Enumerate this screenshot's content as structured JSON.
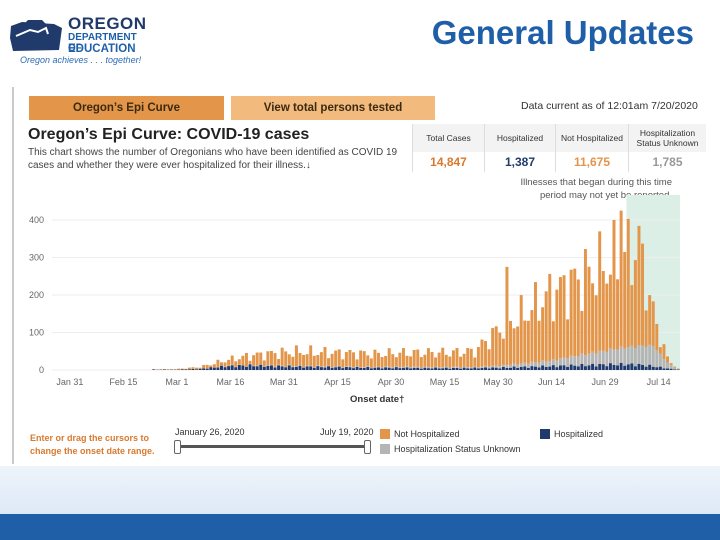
{
  "slide": {
    "title": "General Updates",
    "logo": {
      "line1": "OREGON",
      "line2": "DEPARTMENT OF",
      "line3": "EDUCATION",
      "tagline": "Oregon achieves . . . together!"
    }
  },
  "dashboard": {
    "tabs": [
      {
        "label": "Oregon’s Epi Curve",
        "active": true
      },
      {
        "label": "View total persons tested",
        "active": false
      }
    ],
    "data_current": "Data current as of 12:01am 7/20/2020",
    "chart_title": "Oregon’s Epi Curve: COVID-19 cases",
    "chart_subtitle": "This chart shows the number of Oregonians who have been identified as COVID 19 cases and whether they were ever hospitalized for their illness.↓",
    "stats": [
      {
        "label": "Total Cases",
        "value": "14,847",
        "color": "#d9792e"
      },
      {
        "label": "Hospitalized",
        "value": "1,387",
        "color": "#1f3a6b"
      },
      {
        "label": "Not Hospitalized",
        "value": "11,675",
        "color": "#e3954a"
      },
      {
        "label": "Hospitalization Status Unknown",
        "value": "1,785",
        "color": "#999999"
      }
    ],
    "note": "Illnesses that began during this time period may not yet be reported.",
    "x_axis_title": "Onset date†",
    "drag_note_line1": "Enter or drag the cursors to",
    "drag_note_line2": "change the onset date range.",
    "slider": {
      "start": "January 26, 2020",
      "end": "July 19, 2020"
    },
    "legend": [
      {
        "label": "Not Hospitalized",
        "color": "#e3954a"
      },
      {
        "label": "Hospitalized",
        "color": "#1f3a6b"
      },
      {
        "label": "Hospitalization Status Unknown",
        "color": "#b5b5b5"
      }
    ]
  },
  "chart_data": {
    "type": "bar",
    "stacked": true,
    "title": "Oregon’s Epi Curve: COVID-19 cases",
    "xlabel": "Onset date†",
    "ylabel": "",
    "ylim": [
      0,
      440
    ],
    "yticks": [
      0,
      100,
      200,
      300,
      400
    ],
    "x_tick_labels": [
      "Jan 31",
      "Feb 15",
      "Mar 1",
      "Mar 16",
      "Mar 31",
      "Apr 15",
      "Apr 30",
      "May 15",
      "May 30",
      "Jun 14",
      "Jun 29",
      "Jul 14"
    ],
    "start_date": "2020-01-26",
    "end_date": "2020-07-19",
    "shaded_region": {
      "from": "2020-07-05",
      "to": "2020-07-19",
      "color": "#dcefe6"
    },
    "series_colors": {
      "Not Hospitalized": "#e3954a",
      "Hospitalized": "#1f3a6b",
      "Hospitalization Status Unknown": "#b5b5b5"
    },
    "weekly_anchors": [
      {
        "date": "2020-02-29",
        "total": 2,
        "hosp": 1,
        "unknown": 0
      },
      {
        "date": "2020-03-07",
        "total": 8,
        "hosp": 3,
        "unknown": 0
      },
      {
        "date": "2020-03-14",
        "total": 25,
        "hosp": 10,
        "unknown": 1
      },
      {
        "date": "2020-03-21",
        "total": 38,
        "hosp": 12,
        "unknown": 1
      },
      {
        "date": "2020-03-28",
        "total": 45,
        "hosp": 10,
        "unknown": 2
      },
      {
        "date": "2020-04-04",
        "total": 48,
        "hosp": 9,
        "unknown": 2
      },
      {
        "date": "2020-04-11",
        "total": 46,
        "hosp": 8,
        "unknown": 2
      },
      {
        "date": "2020-04-18",
        "total": 45,
        "hosp": 7,
        "unknown": 2
      },
      {
        "date": "2020-04-25",
        "total": 42,
        "hosp": 6,
        "unknown": 2
      },
      {
        "date": "2020-05-02",
        "total": 45,
        "hosp": 6,
        "unknown": 3
      },
      {
        "date": "2020-05-09",
        "total": 46,
        "hosp": 5,
        "unknown": 3
      },
      {
        "date": "2020-05-16",
        "total": 46,
        "hosp": 5,
        "unknown": 3
      },
      {
        "date": "2020-05-23",
        "total": 50,
        "hosp": 5,
        "unknown": 3
      },
      {
        "date": "2020-05-30",
        "total": 110,
        "hosp": 6,
        "unknown": 6
      },
      {
        "date": "2020-06-06",
        "total": 150,
        "hosp": 8,
        "unknown": 10
      },
      {
        "date": "2020-06-13",
        "total": 200,
        "hosp": 10,
        "unknown": 15
      },
      {
        "date": "2020-06-20",
        "total": 235,
        "hosp": 12,
        "unknown": 25
      },
      {
        "date": "2020-06-27",
        "total": 270,
        "hosp": 14,
        "unknown": 35
      },
      {
        "date": "2020-07-04",
        "total": 300,
        "hosp": 15,
        "unknown": 45
      },
      {
        "date": "2020-07-08",
        "total": 330,
        "hosp": 14,
        "unknown": 50
      },
      {
        "date": "2020-07-12",
        "total": 150,
        "hosp": 10,
        "unknown": 55
      },
      {
        "date": "2020-07-16",
        "total": 30,
        "hosp": 4,
        "unknown": 15
      },
      {
        "date": "2020-07-19",
        "total": 3,
        "hosp": 1,
        "unknown": 1
      }
    ],
    "peaks": [
      {
        "date": "2020-06-01",
        "total": 275
      },
      {
        "date": "2020-07-01",
        "total": 400
      },
      {
        "date": "2020-07-03",
        "total": 425
      }
    ]
  }
}
